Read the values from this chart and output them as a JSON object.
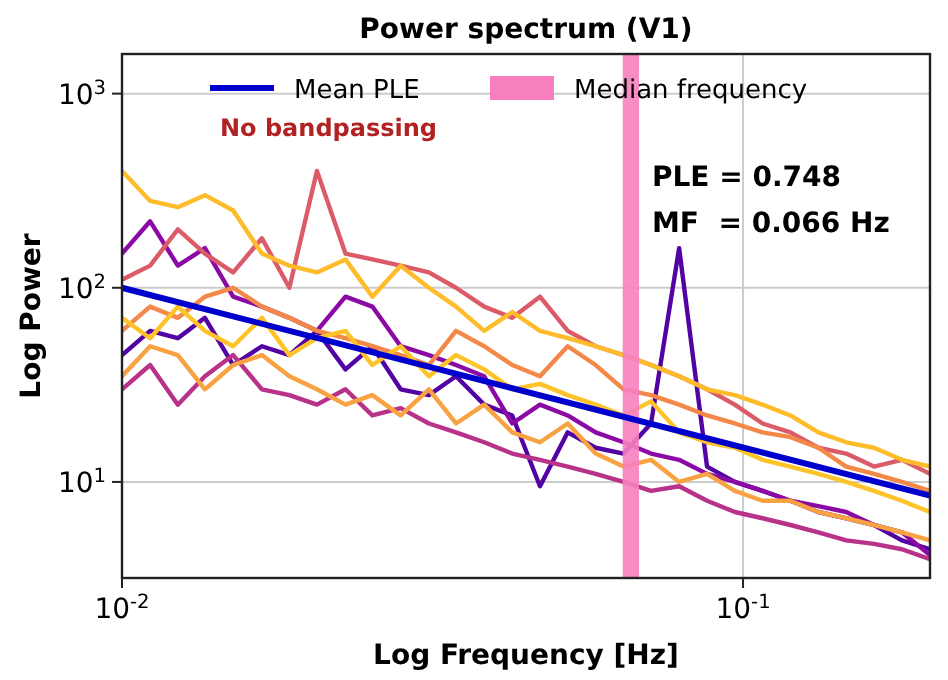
{
  "chart_data": {
    "type": "line",
    "title": "Power spectrum (V1)",
    "xlabel": "Log Frequency [Hz]",
    "ylabel": "Log Power",
    "log": "xy",
    "grid": true,
    "legend": "top",
    "line_style": "solid",
    "xlim": [
      0.01,
      0.2
    ],
    "ylim": [
      3.2,
      1600
    ],
    "xticks": [
      {
        "value": 0.01,
        "label": "10$^{-2}$"
      },
      {
        "value": 0.1,
        "label": "10$^{-1}$"
      }
    ],
    "yticks": [
      {
        "value": 10,
        "label": "10$^{1}$"
      },
      {
        "value": 100,
        "label": "10$^{2}$"
      },
      {
        "value": 1000,
        "label": "10$^{3}$"
      }
    ],
    "x": [
      0.01,
      0.0111,
      0.0123,
      0.0136,
      0.0151,
      0.0168,
      0.0186,
      0.0206,
      0.0229,
      0.0253,
      0.0281,
      0.0312,
      0.0345,
      0.0383,
      0.0425,
      0.0471,
      0.0522,
      0.0579,
      0.0642,
      0.0711,
      0.0789,
      0.0875,
      0.097,
      0.1075,
      0.1192,
      0.1322,
      0.1466,
      0.1625,
      0.1802,
      0.2
    ],
    "series": [
      {
        "color": "#5302a3",
        "values": [
          45,
          60,
          55,
          70,
          40,
          50,
          45,
          60,
          38,
          50,
          30,
          28,
          35,
          25,
          22,
          9.5,
          18,
          15,
          14,
          20,
          160,
          12,
          10,
          9,
          8,
          7,
          6.5,
          6,
          5,
          4.5
        ]
      },
      {
        "color": "#8b0aa5",
        "values": [
          150,
          220,
          130,
          160,
          90,
          80,
          70,
          60,
          90,
          80,
          50,
          45,
          40,
          35,
          20,
          25,
          22,
          18,
          16,
          14,
          13,
          11,
          10,
          9,
          8,
          7.5,
          7,
          6,
          5.5,
          4.2
        ]
      },
      {
        "color": "#b83289",
        "values": [
          30,
          40,
          25,
          35,
          45,
          30,
          28,
          25,
          30,
          22,
          24,
          20,
          18,
          16,
          14,
          13,
          12,
          11,
          10,
          9,
          9.5,
          8,
          7,
          6.5,
          6,
          5.5,
          5,
          4.8,
          4.5,
          4
        ]
      },
      {
        "color": "#db5c68",
        "values": [
          110,
          130,
          200,
          150,
          120,
          180,
          100,
          400,
          150,
          140,
          130,
          120,
          100,
          80,
          70,
          90,
          60,
          50,
          45,
          40,
          35,
          30,
          25,
          20,
          18,
          15,
          14,
          12,
          13,
          11
        ]
      },
      {
        "color": "#f48849",
        "values": [
          60,
          80,
          70,
          90,
          100,
          80,
          70,
          60,
          55,
          50,
          45,
          40,
          60,
          50,
          40,
          35,
          50,
          40,
          30,
          28,
          25,
          22,
          20,
          18,
          17,
          15,
          12,
          11,
          10,
          9
        ]
      },
      {
        "color": "#febc2a",
        "values": [
          400,
          280,
          260,
          300,
          250,
          150,
          130,
          120,
          140,
          90,
          130,
          100,
          80,
          60,
          75,
          60,
          55,
          50,
          45,
          40,
          35,
          30,
          28,
          25,
          22,
          18,
          16,
          15,
          13,
          12
        ]
      },
      {
        "color": "#f9a242",
        "values": [
          35,
          50,
          45,
          30,
          40,
          45,
          35,
          30,
          25,
          28,
          22,
          30,
          20,
          25,
          18,
          16,
          20,
          14,
          12,
          13,
          10,
          11,
          9,
          8,
          8,
          7,
          6.5,
          6,
          5.5,
          5
        ]
      },
      {
        "color": "#fdc328",
        "values": [
          70,
          55,
          80,
          60,
          50,
          70,
          45,
          55,
          60,
          40,
          50,
          35,
          45,
          38,
          30,
          32,
          28,
          25,
          22,
          26,
          18,
          16,
          15,
          13,
          12,
          11,
          10,
          9,
          8,
          7
        ]
      },
      {
        "name": "Mean PLE",
        "color": "#0000cc",
        "x": [
          0.01,
          0.2
        ],
        "values": [
          100,
          8.5
        ]
      }
    ],
    "bands": [
      {
        "axis": "x",
        "from": 0.064,
        "to": 0.068,
        "label": "Median frequency",
        "color": "#f77fbf"
      }
    ],
    "annotations": [
      "No bandpassing",
      "PLE = 0.748",
      "MF  = 0.066 Hz"
    ]
  }
}
